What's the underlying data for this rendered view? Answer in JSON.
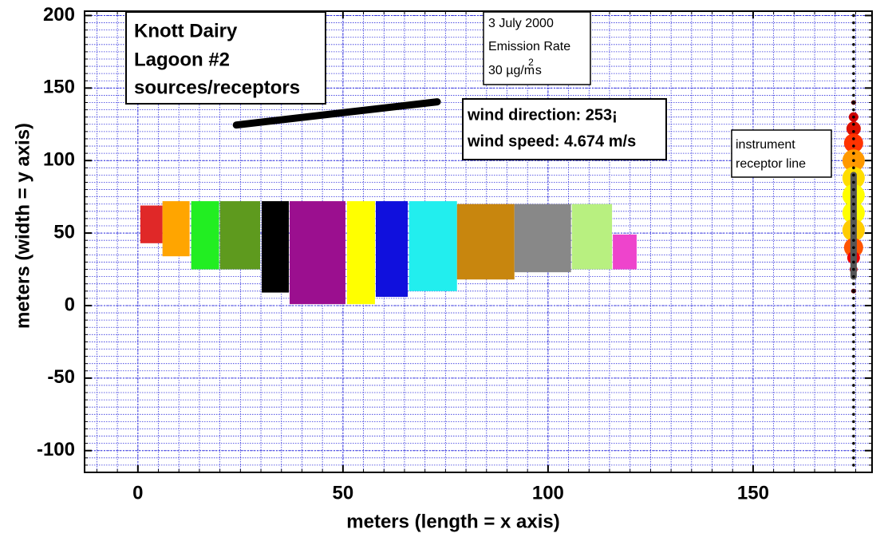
{
  "chart_data": {
    "type": "rect",
    "title_lines": [
      "Knott Dairy",
      "Lagoon #2",
      "sources/receptors"
    ],
    "emission_lines": [
      "3 July 2000",
      "Emission Rate"
    ],
    "emission_rate_parts": [
      "30 µg/m",
      "2",
      "s"
    ],
    "wind_lines": [
      "wind direction: 253¡",
      "wind speed: 4.674 m/s"
    ],
    "receptor_label_lines": [
      "instrument",
      "receptor line"
    ],
    "xlabel": "meters (length = x axis)",
    "ylabel": "meters (width = y axis)",
    "xlim": [
      -13,
      179
    ],
    "ylim": [
      -115,
      203
    ],
    "xticks": [
      0,
      50,
      100,
      150
    ],
    "yticks": [
      -100,
      -50,
      0,
      50,
      100,
      150,
      200
    ],
    "grid": true,
    "minor_divisions": 10,
    "sources": [
      {
        "x": [
          0.6,
          6.0
        ],
        "y": [
          43,
          69
        ],
        "color": "#e02828"
      },
      {
        "x": [
          6.0,
          12.6
        ],
        "y": [
          34,
          72
        ],
        "color": "#ffa500"
      },
      {
        "x": [
          13.0,
          19.8
        ],
        "y": [
          25,
          72
        ],
        "color": "#22ee22"
      },
      {
        "x": [
          20.0,
          29.8
        ],
        "y": [
          25,
          72
        ],
        "color": "#5e9a1e"
      },
      {
        "x": [
          30.2,
          36.8
        ],
        "y": [
          9,
          72
        ],
        "color": "#000000"
      },
      {
        "x": [
          37.0,
          50.6
        ],
        "y": [
          1,
          72
        ],
        "color": "#9b0f8f"
      },
      {
        "x": [
          51.0,
          57.8
        ],
        "y": [
          1,
          72
        ],
        "color": "#ffff00"
      },
      {
        "x": [
          58.0,
          65.8
        ],
        "y": [
          6,
          72
        ],
        "color": "#1010dd"
      },
      {
        "x": [
          66.1,
          77.8
        ],
        "y": [
          10,
          72
        ],
        "color": "#22eeee"
      },
      {
        "x": [
          77.8,
          91.8
        ],
        "y": [
          18,
          70
        ],
        "color": "#c8860e"
      },
      {
        "x": [
          91.8,
          105.6
        ],
        "y": [
          23,
          70
        ],
        "color": "#888888"
      },
      {
        "x": [
          105.8,
          115.6
        ],
        "y": [
          25,
          70
        ],
        "color": "#b8f080"
      },
      {
        "x": [
          115.8,
          121.6
        ],
        "y": [
          25,
          49
        ],
        "color": "#ee44cc"
      }
    ],
    "wind_line": {
      "x": [
        24,
        73
      ],
      "y": [
        124.5,
        140.5
      ],
      "color": "#000000"
    },
    "receptor_line": {
      "x": 174.5,
      "dot_y_from": -110,
      "dot_y_to": 200,
      "dot_step": 5,
      "color": "#000000"
    },
    "receptor_points": {
      "y": [
        140,
        130,
        122,
        112,
        100,
        88,
        76,
        64,
        52,
        40,
        33,
        25,
        10
      ],
      "size": [
        3,
        6,
        9,
        12,
        14,
        14,
        14,
        14,
        14,
        12,
        8,
        5,
        3
      ],
      "colors": [
        "#550000",
        "#cc0000",
        "#dd1100",
        "#ff3300",
        "#ff9900",
        "#ffdd00",
        "#ffff00",
        "#ffff00",
        "#ffcc00",
        "#ff5500",
        "#ee0000",
        "#bb0000",
        "#550000"
      ]
    },
    "instrument_line": {
      "y": [
        20,
        90
      ],
      "color": "#555555"
    }
  }
}
